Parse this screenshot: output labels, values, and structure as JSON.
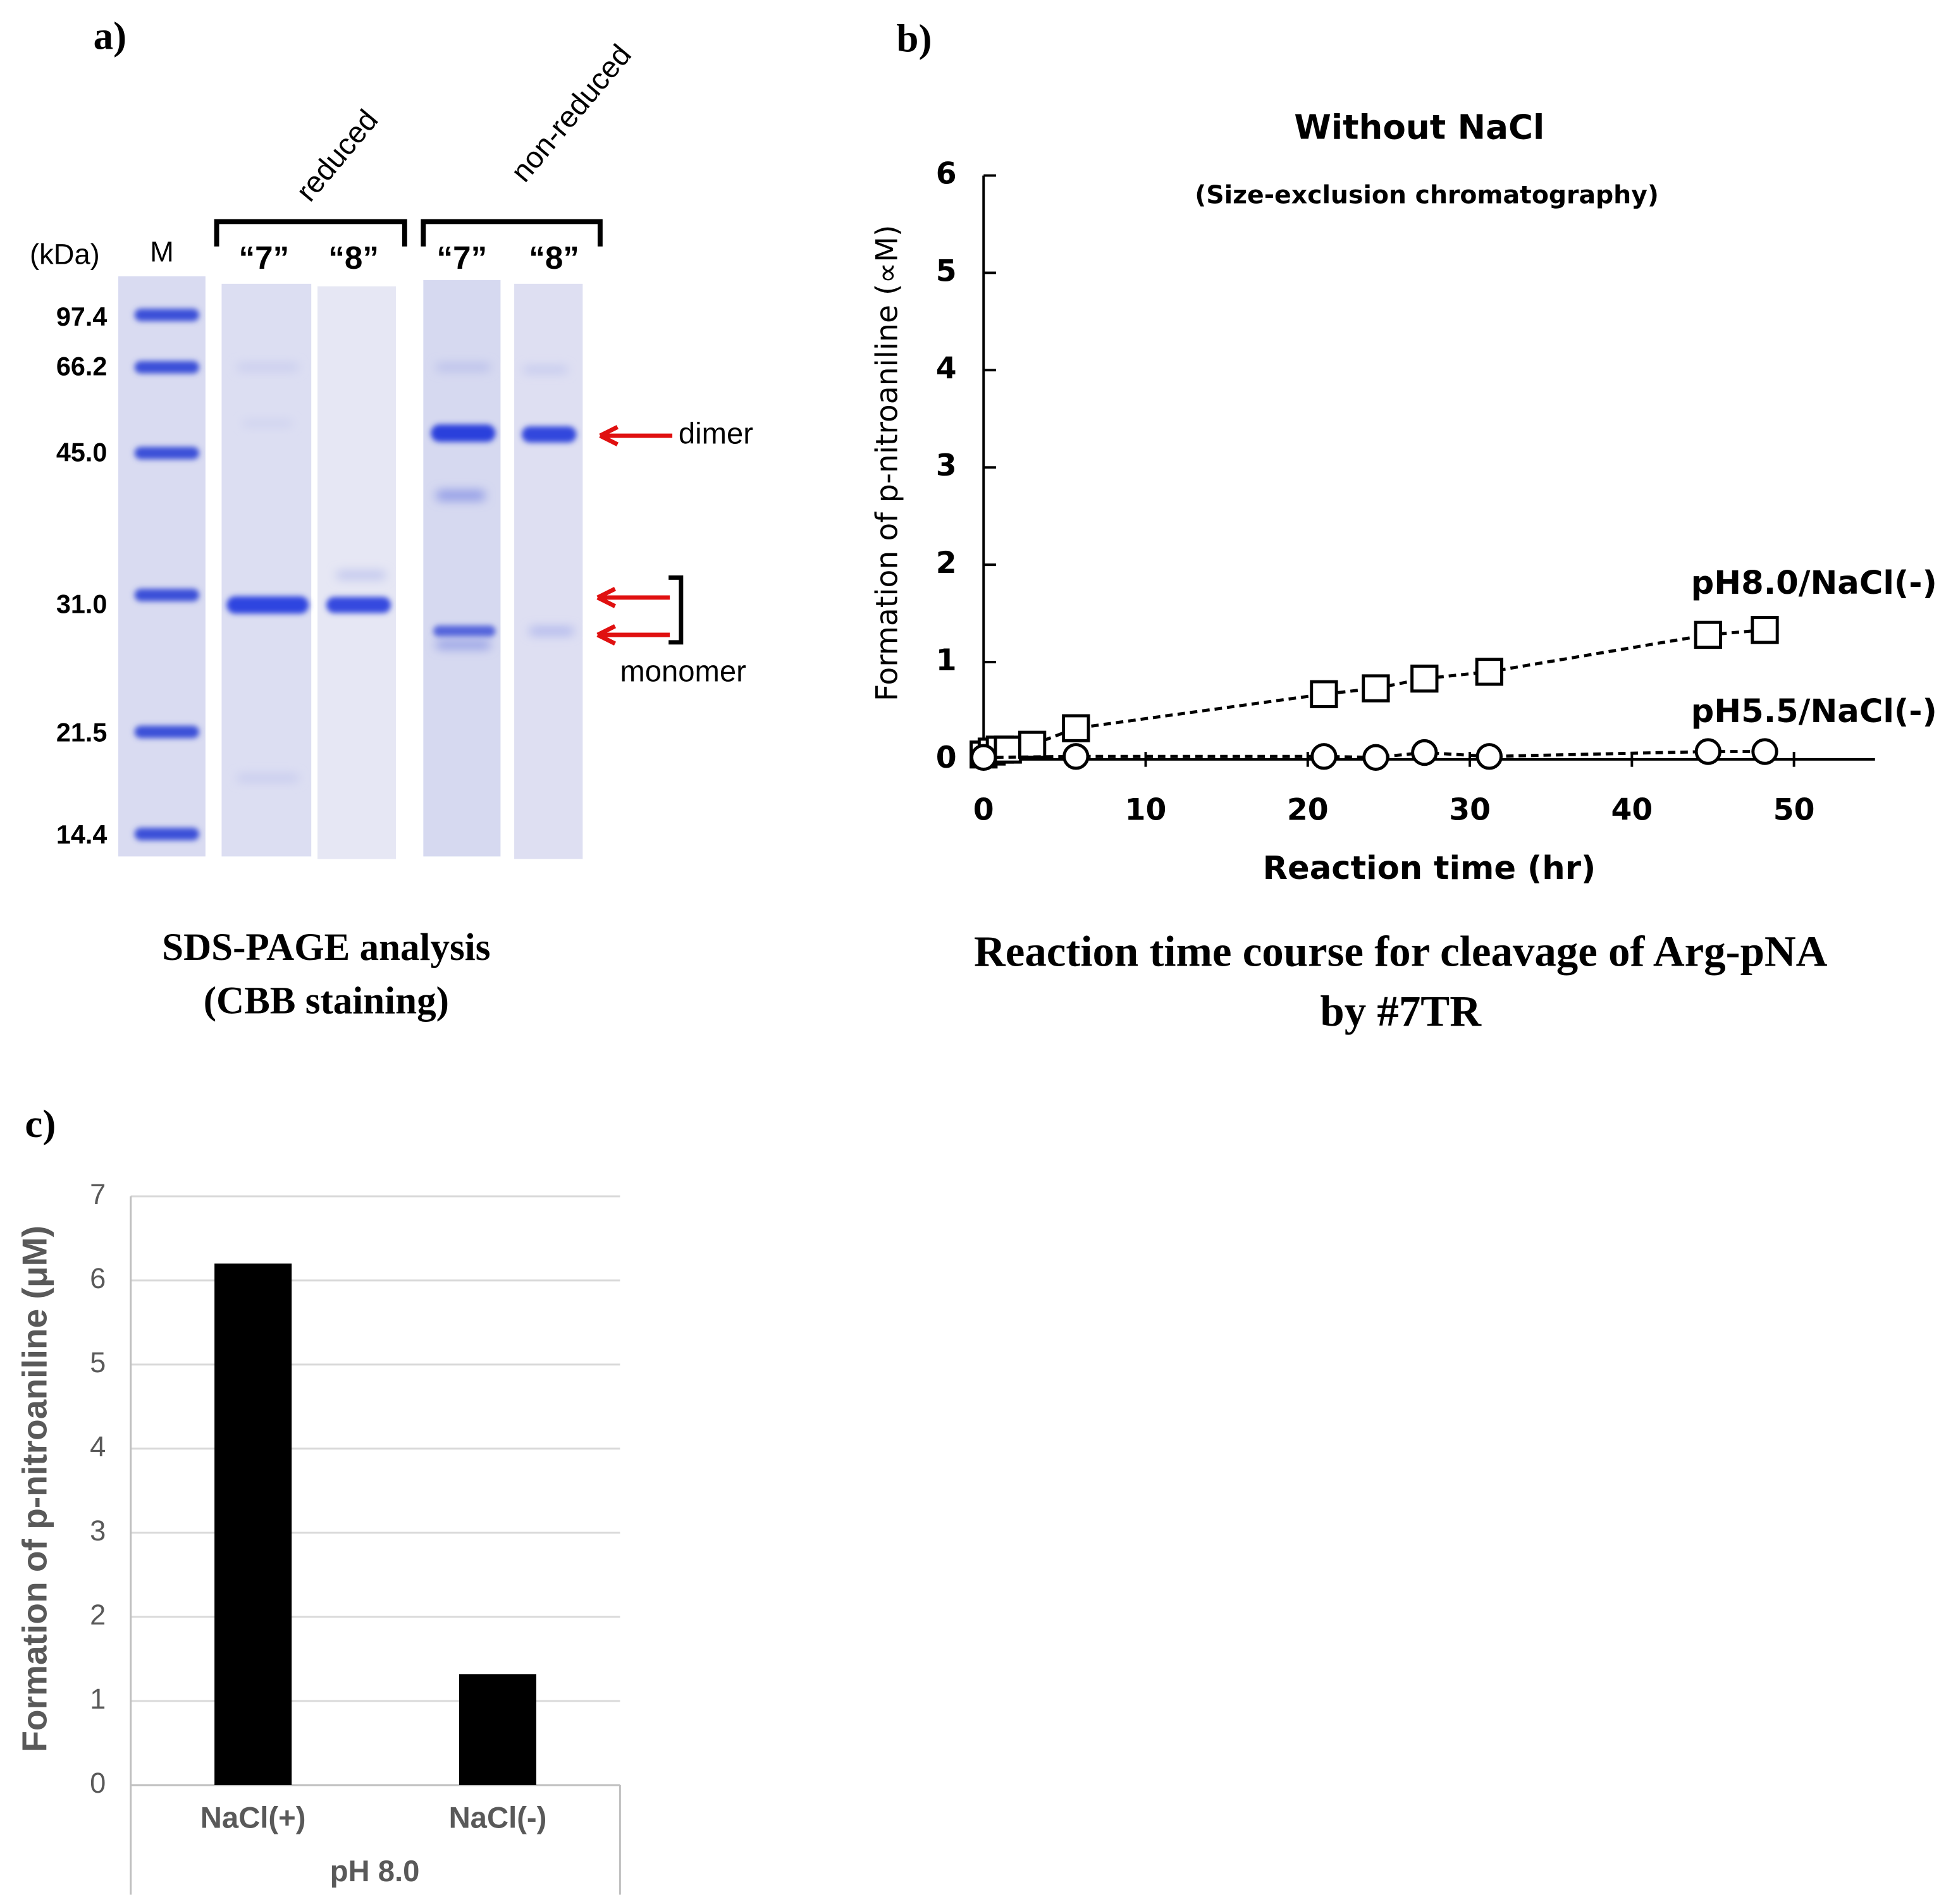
{
  "gel": {
    "panel_label": "a)",
    "group_labels": [
      "reduced",
      "non-reduced"
    ],
    "unit_label": "(kDa)",
    "lane_labels": [
      "M",
      "“7”",
      "“8”",
      "“7”",
      "“8”"
    ],
    "markers": [
      "97.4",
      "66.2",
      "45.0",
      "31.0",
      "21.5",
      "14.4"
    ],
    "band_labels": [
      "dimer",
      "monomer"
    ],
    "caption": [
      "SDS-PAGE analysis",
      "(CBB staining)"
    ]
  },
  "chart_data": [
    {
      "type": "scatter",
      "panel_label": "b)",
      "title": "Without NaCl",
      "subtitle": "(Size-exclusion chromatography)",
      "y_label": "Formation of  p-nitroaniline (∝M)",
      "x_label": "Reaction time (hr)",
      "caption": [
        "Reaction time course for cleavage of Arg-pNA",
        "by #7TR"
      ],
      "xlim": [
        0,
        55
      ],
      "xticks": [
        0,
        10,
        20,
        30,
        40,
        50
      ],
      "ylim": [
        0,
        6
      ],
      "yticks": [
        0,
        1,
        2,
        3,
        4,
        5,
        6
      ],
      "series": [
        {
          "name": "pH8.0/NaCl(-)",
          "marker": "square",
          "color": "#000000",
          "x": [
            0,
            0.5,
            1,
            1.5,
            3,
            5.7,
            21,
            24.2,
            27.2,
            31.2,
            44.7,
            48.2
          ],
          "values": [
            0.05,
            0.08,
            0.1,
            0.1,
            0.15,
            0.32,
            0.67,
            0.73,
            0.83,
            0.9,
            1.28,
            1.33
          ]
        },
        {
          "name": "pH5.5/NaCl(-)",
          "marker": "circle",
          "color": "#000000",
          "x": [
            0,
            5.7,
            21,
            24.2,
            27.2,
            31.2,
            44.7,
            48.2
          ],
          "values": [
            0.02,
            0.03,
            0.03,
            0.02,
            0.07,
            0.03,
            0.08,
            0.08
          ]
        }
      ]
    },
    {
      "type": "bar",
      "panel_label": "c)",
      "y_label": "Formation of p-nitroaniline (μM)",
      "x_label": "pH 8.0",
      "categories": [
        "NaCl(+)",
        "NaCl(-)"
      ],
      "values": [
        6.2,
        1.32
      ],
      "color": "#000000",
      "ylim": [
        0,
        7
      ],
      "yticks": [
        0,
        1,
        2,
        3,
        4,
        5,
        6,
        7
      ],
      "grid": true
    }
  ]
}
